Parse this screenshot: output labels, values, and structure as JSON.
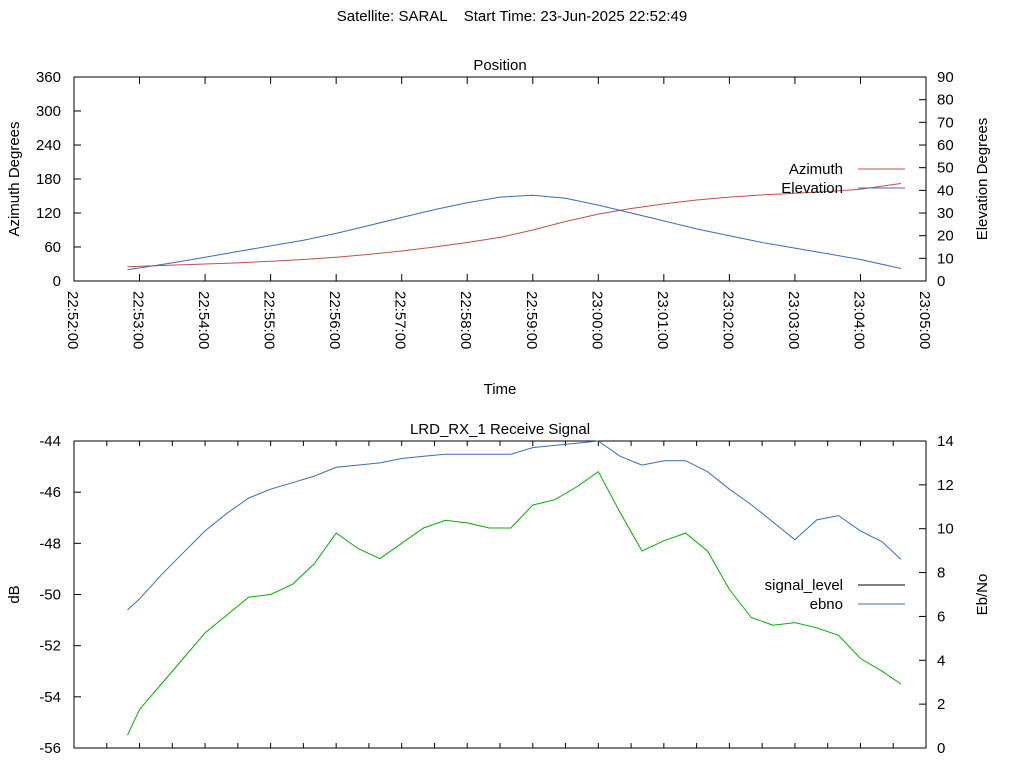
{
  "header": {
    "title": "Satellite: SARAL    Start Time: 23-Jun-2025 22:52:49"
  },
  "chart_data": [
    {
      "type": "line",
      "title": "Position",
      "xlabel": "Time",
      "ylabel": "Azimuth Degrees",
      "y2label": "Elevation Degrees",
      "x_ticks": [
        "22:52:00",
        "22:53:00",
        "22:54:00",
        "22:55:00",
        "22:56:00",
        "22:57:00",
        "22:58:00",
        "22:59:00",
        "23:00:00",
        "23:01:00",
        "23:02:00",
        "23:03:00",
        "23:04:00",
        "23:05:00"
      ],
      "y_ticks": [
        "0",
        "60",
        "120",
        "180",
        "240",
        "300",
        "360"
      ],
      "y2_ticks": [
        "0",
        "10",
        "20",
        "30",
        "40",
        "50",
        "60",
        "70",
        "80",
        "90"
      ],
      "ylim": [
        0,
        360
      ],
      "y2lim": [
        0,
        90
      ],
      "legend_position": "right",
      "series": [
        {
          "name": "Azimuth",
          "axis": "left",
          "color": "#c0504d",
          "x": [
            "22:52:49",
            "22:53:30",
            "22:54:00",
            "22:54:30",
            "22:55:00",
            "22:55:30",
            "22:56:00",
            "22:56:30",
            "22:57:00",
            "22:57:30",
            "22:58:00",
            "22:58:30",
            "22:59:00",
            "22:59:30",
            "23:00:00",
            "23:00:30",
            "23:01:00",
            "23:01:30",
            "23:02:00",
            "23:02:30",
            "23:03:00",
            "23:03:30",
            "23:04:00",
            "23:04:37"
          ],
          "y": [
            25,
            28,
            30,
            32,
            35,
            38,
            42,
            47,
            53,
            60,
            68,
            77,
            90,
            105,
            118,
            128,
            136,
            143,
            148,
            152,
            155,
            158,
            162,
            172
          ]
        },
        {
          "name": "Elevation",
          "axis": "right",
          "color": "#3a6eb0",
          "x": [
            "22:52:49",
            "22:53:30",
            "22:54:00",
            "22:54:30",
            "22:55:00",
            "22:55:30",
            "22:56:00",
            "22:56:30",
            "22:57:00",
            "22:57:30",
            "22:58:00",
            "22:58:30",
            "22:59:00",
            "22:59:30",
            "23:00:00",
            "23:00:30",
            "23:01:00",
            "23:01:30",
            "23:02:00",
            "23:02:30",
            "23:03:00",
            "23:03:30",
            "23:04:00",
            "23:04:37"
          ],
          "y": [
            5,
            8,
            10.5,
            13,
            15.5,
            18,
            21,
            24.5,
            28,
            31.5,
            34.5,
            37,
            37.8,
            36.5,
            33.5,
            30,
            26.5,
            23,
            20,
            17,
            14.5,
            12,
            9.5,
            5.5
          ]
        }
      ]
    },
    {
      "type": "line",
      "title": "LRD_RX_1 Receive Signal",
      "xlabel": "",
      "ylabel": "dB",
      "y2label": "Eb/No",
      "y_ticks": [
        "-44",
        "-46",
        "-48",
        "-50",
        "-52",
        "-54",
        "-56"
      ],
      "y2_ticks": [
        "14",
        "12",
        "10",
        "8",
        "6",
        "4",
        "2",
        "0"
      ],
      "ylim": [
        -56,
        -44
      ],
      "y2lim": [
        0,
        14
      ],
      "legend_position": "right",
      "series": [
        {
          "name": "signal_level",
          "legend_color": "#000000",
          "color": "#00b000",
          "axis": "left",
          "x": [
            "22:52:49",
            "22:53:00",
            "22:53:20",
            "22:53:40",
            "22:54:00",
            "22:54:20",
            "22:54:40",
            "22:55:00",
            "22:55:20",
            "22:55:40",
            "22:56:00",
            "22:56:20",
            "22:56:40",
            "22:57:00",
            "22:57:20",
            "22:57:40",
            "22:58:00",
            "22:58:20",
            "22:58:40",
            "22:59:00",
            "22:59:20",
            "22:59:40",
            "23:00:00",
            "23:00:20",
            "23:00:40",
            "23:01:00",
            "23:01:20",
            "23:01:40",
            "23:02:00",
            "23:02:20",
            "23:02:40",
            "23:03:00",
            "23:03:20",
            "23:03:40",
            "23:04:00",
            "23:04:20",
            "23:04:37"
          ],
          "y": [
            -55.5,
            -54.5,
            -53.5,
            -52.5,
            -51.5,
            -50.8,
            -50.1,
            -50.0,
            -49.6,
            -48.8,
            -47.6,
            -48.2,
            -48.6,
            -48.0,
            -47.4,
            -47.1,
            -47.2,
            -47.4,
            -47.4,
            -46.5,
            -46.3,
            -45.8,
            -45.2,
            -46.8,
            -48.3,
            -47.9,
            -47.6,
            -48.3,
            -49.8,
            -50.9,
            -51.2,
            -51.1,
            -51.3,
            -51.6,
            -52.5,
            -53.0,
            -53.5
          ]
        },
        {
          "name": "ebno",
          "color": "#3a6eb0",
          "axis": "right",
          "x": [
            "22:52:49",
            "22:53:00",
            "22:53:20",
            "22:53:40",
            "22:54:00",
            "22:54:20",
            "22:54:40",
            "22:55:00",
            "22:55:20",
            "22:55:40",
            "22:56:00",
            "22:56:20",
            "22:56:40",
            "22:57:00",
            "22:57:20",
            "22:57:40",
            "22:58:00",
            "22:58:20",
            "22:58:40",
            "22:59:00",
            "22:59:20",
            "22:59:40",
            "23:00:00",
            "23:00:20",
            "23:00:40",
            "23:01:00",
            "23:01:20",
            "23:01:40",
            "23:02:00",
            "23:02:20",
            "23:02:40",
            "23:03:00",
            "23:03:20",
            "23:03:40",
            "23:04:00",
            "23:04:20",
            "23:04:37"
          ],
          "y": [
            6.3,
            6.8,
            7.9,
            8.9,
            9.9,
            10.7,
            11.4,
            11.8,
            12.1,
            12.4,
            12.8,
            12.9,
            13.0,
            13.2,
            13.3,
            13.4,
            13.4,
            13.4,
            13.4,
            13.7,
            13.8,
            13.9,
            14.0,
            13.3,
            12.9,
            13.1,
            13.1,
            12.6,
            11.8,
            11.1,
            10.3,
            9.5,
            10.4,
            10.6,
            9.9,
            9.4,
            8.6
          ]
        }
      ]
    }
  ]
}
